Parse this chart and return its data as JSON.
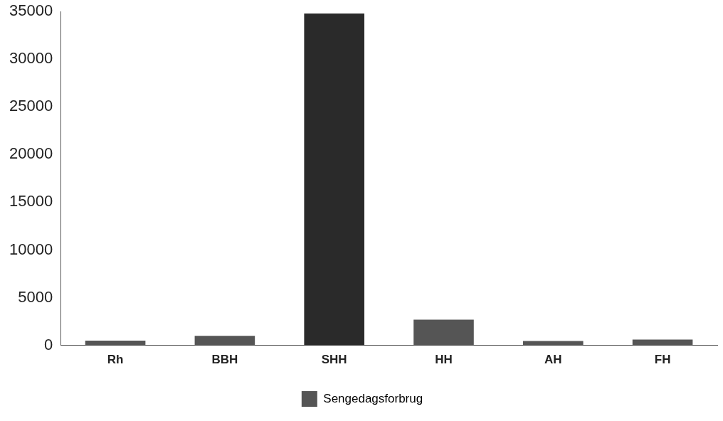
{
  "chart_data": {
    "type": "bar",
    "categories": [
      "Rh",
      "BBH",
      "SHH",
      "HH",
      "AH",
      "FH"
    ],
    "series": [
      {
        "name": "Sengedagsforbrug",
        "color": "#555555",
        "colors": [
          "#555555",
          "#555555",
          "#2a2a2a",
          "#555555",
          "#555555",
          "#555555"
        ],
        "values": [
          500,
          1000,
          34800,
          2700,
          450,
          600
        ]
      }
    ],
    "ylim": [
      0,
      35000
    ],
    "yticks": [
      0,
      5000,
      10000,
      15000,
      20000,
      25000,
      30000,
      35000
    ],
    "grid": false,
    "legend": "bottom"
  }
}
